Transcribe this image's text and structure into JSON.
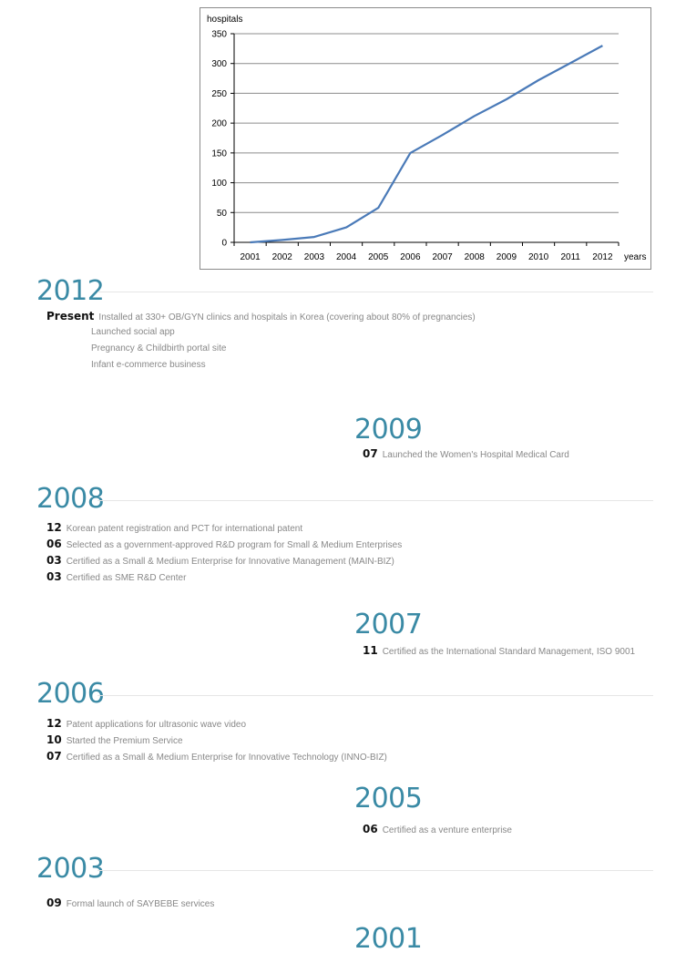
{
  "chart_data": {
    "type": "line",
    "ylabel": "hospitals",
    "xlabel": "years",
    "categories": [
      "2001",
      "2002",
      "2003",
      "2004",
      "2005",
      "2006",
      "2007",
      "2008",
      "2009",
      "2010",
      "2011",
      "2012"
    ],
    "series": [
      {
        "values": [
          0,
          4,
          9,
          25,
          58,
          150,
          180,
          212,
          240,
          272,
          301,
          330
        ]
      }
    ],
    "ylim": [
      0,
      350
    ],
    "yticks": [
      0,
      50,
      100,
      150,
      200,
      250,
      300,
      350
    ],
    "grid": true,
    "line_color": "#4a7ab8"
  },
  "timeline": [
    {
      "year": "2012",
      "entries": [
        {
          "month": "Present",
          "text": "Installed at 330+ OB/GYN clinics and hospitals in Korea (covering about 80% of pregnancies)"
        }
      ],
      "subentries": [
        "Launched social app",
        "Pregnancy & Childbirth portal site",
        "Infant e-commerce business"
      ]
    },
    {
      "year": "2009",
      "entries": [
        {
          "month": "07",
          "text": "Launched the Women's Hospital Medical Card"
        }
      ]
    },
    {
      "year": "2008",
      "entries": [
        {
          "month": "12",
          "text": "Korean patent registration and PCT for international patent"
        },
        {
          "month": "06",
          "text": "Selected as a government-approved R&D program for Small & Medium Enterprises"
        },
        {
          "month": "03",
          "text": "Certified as a Small & Medium Enterprise for Innovative Management (MAIN-BIZ)"
        },
        {
          "month": "03",
          "text": "Certified as SME R&D Center"
        }
      ]
    },
    {
      "year": "2007",
      "entries": [
        {
          "month": "11",
          "text": "Certified as the International Standard Management, ISO 9001"
        }
      ]
    },
    {
      "year": "2006",
      "entries": [
        {
          "month": "12",
          "text": "Patent applications for ultrasonic wave video"
        },
        {
          "month": "10",
          "text": "Started the Premium Service"
        },
        {
          "month": "07",
          "text": "Certified as a Small & Medium Enterprise for Innovative Technology (INNO-BIZ)"
        }
      ]
    },
    {
      "year": "2005",
      "entries": [
        {
          "month": "06",
          "text": "Certified as a venture enterprise"
        }
      ]
    },
    {
      "year": "2003",
      "entries": [
        {
          "month": "09",
          "text": "Formal launch of SAYBEBE services"
        }
      ]
    },
    {
      "year": "2001",
      "entries": []
    }
  ]
}
